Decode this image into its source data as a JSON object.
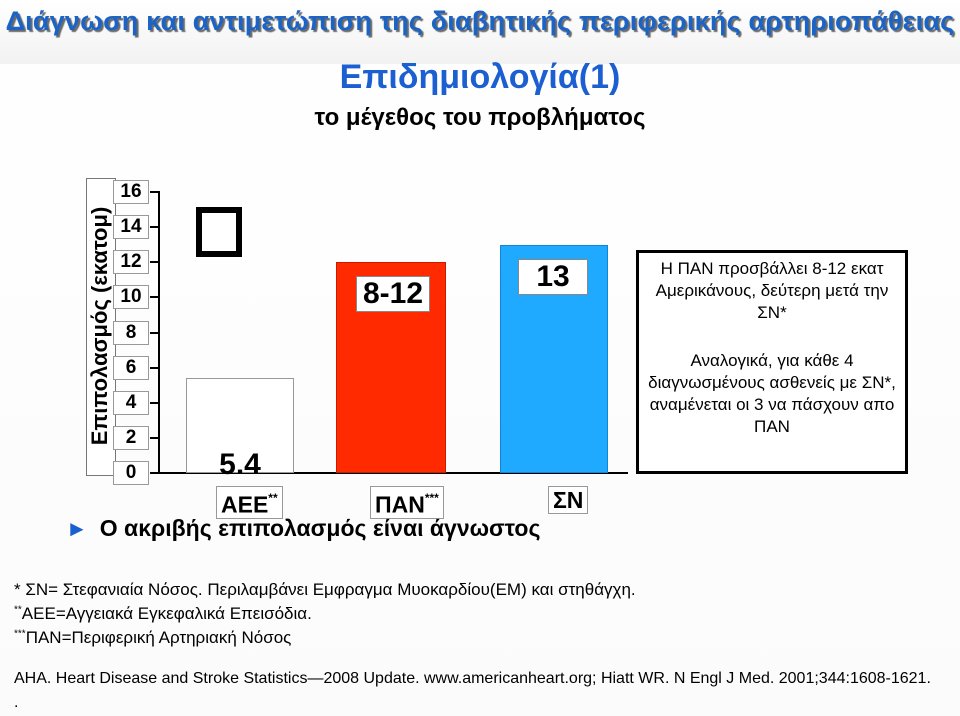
{
  "slide": {
    "banner": "Διάγνωση και αντιμετώπιση της διαβητικής περιφερικής αρτηριοπάθειας",
    "title": "Επιδημιολογία(1)",
    "subtitle": "το μέγεθος του προβλήματος"
  },
  "chart_data": {
    "type": "bar",
    "title": "",
    "ylabel": "Επιπολασμός (εκατομ)",
    "ylim": [
      0,
      16
    ],
    "yticks": [
      "16",
      "14",
      "12",
      "10",
      "8",
      "6",
      "4",
      "2",
      "0"
    ],
    "categories": [
      "ΑΕΕ",
      "ΠΑΝ",
      "ΣΝ"
    ],
    "category_marks": [
      "**",
      "***",
      ""
    ],
    "values": [
      5.4,
      12,
      13
    ],
    "range_low": [
      5.4,
      8,
      13
    ],
    "data_labels": [
      "5.4",
      "8-12",
      "13"
    ],
    "grid": false,
    "colors": [
      "#ffffff",
      "#ff2a00",
      "#1fa9ff"
    ]
  },
  "bullet": {
    "icon": "triangle-bullet-icon",
    "text": "Ο ακριβής επιπολασμός είναι άγνωστος"
  },
  "info_box": {
    "paragraph1": "Η ΠΑΝ προσβάλλει 8-12 εκατ Αμερικάνους, δεύτερη μετά την ΣΝ*",
    "paragraph2": "Αναλογικά, για κάθε 4 διαγνωσμένους ασθενείς με ΣΝ*, αναμένεται οι 3 να πάσχουν απο ΠΑΝ"
  },
  "footnotes": {
    "f1": "* ΣΝ= Στεφανιαία Νόσος. Περιλαμβάνει Εμφραγμα Μυοκαρδίου(ΕΜ) και στηθάγχη.",
    "f2_mark": "**",
    "f2": "ΑΕΕ=Αγγειακά Εγκεφαλικά Επεισόδια.",
    "f3_mark": "***",
    "f3": "ΠΑΝ=Περιφερική Αρτηριακή Νόσος"
  },
  "reference": "AHA. Heart Disease and Stroke Statistics—2008 Update. www.americanheart.org; Hiatt WR. N Engl J Med. 2001;344:1608-1621.",
  "trailing_mark": "."
}
